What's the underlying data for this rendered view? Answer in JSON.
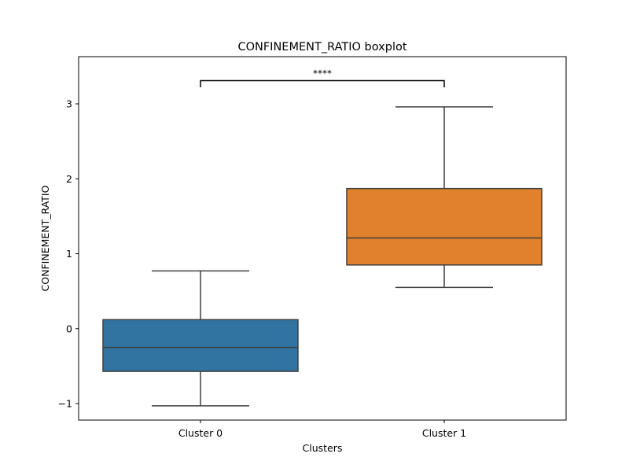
{
  "chart_data": {
    "type": "boxplot",
    "title": "CONFINEMENT_RATIO boxplot",
    "xlabel": "Clusters",
    "ylabel": "CONFINEMENT_RATIO",
    "ylim": [
      -1.22,
      3.63
    ],
    "yticks": [
      -1,
      0,
      1,
      2,
      3
    ],
    "ytick_labels": [
      "−1",
      "0",
      "1",
      "2",
      "3"
    ],
    "grid": false,
    "categories": [
      "Cluster 0",
      "Cluster 1"
    ],
    "boxes": [
      {
        "name": "Cluster 0",
        "whisker_low": -1.03,
        "q1": -0.57,
        "median": -0.25,
        "q3": 0.12,
        "whisker_high": 0.77,
        "color": "#3274a1"
      },
      {
        "name": "Cluster 1",
        "whisker_low": 0.55,
        "q1": 0.85,
        "median": 1.21,
        "q3": 1.87,
        "whisker_high": 2.96,
        "color": "#e1812c"
      }
    ],
    "annotations": [
      {
        "text": "****",
        "from": "Cluster 0",
        "to": "Cluster 1",
        "bracket_top": 3.31,
        "bracket_bottom": 3.22
      }
    ]
  }
}
